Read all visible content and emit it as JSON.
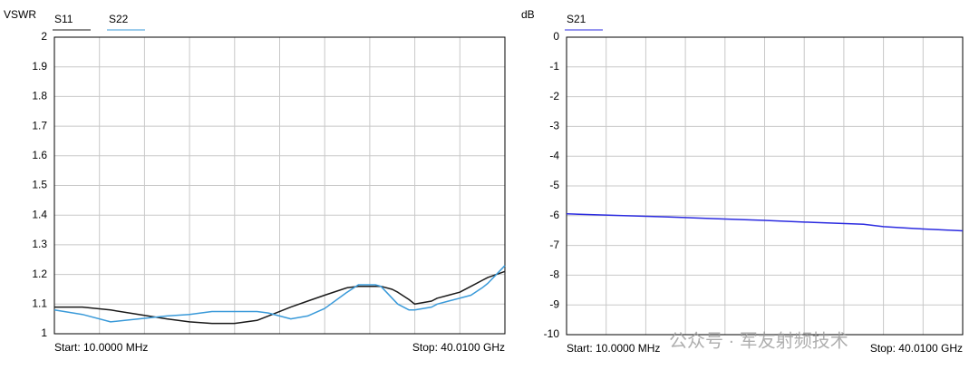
{
  "chart_data": [
    {
      "type": "line",
      "y_label": "VSWR",
      "start_label": "Start: 10.0000 MHz",
      "stop_label": "Stop: 40.0100 GHz",
      "x": [
        0.01,
        2.5,
        5,
        7.5,
        10,
        12,
        14,
        16,
        18,
        19,
        21,
        22.5,
        24,
        26,
        27,
        28.5,
        29,
        30,
        30.5,
        31.5,
        32,
        33.5,
        34,
        35,
        36,
        37,
        38,
        38.5,
        40.01
      ],
      "xlim": [
        0.01,
        40.01
      ],
      "ylim": [
        1,
        2
      ],
      "yticks": [
        1,
        1.1,
        1.2,
        1.3,
        1.4,
        1.5,
        1.6,
        1.7,
        1.8,
        1.9,
        2
      ],
      "grid": true,
      "series": [
        {
          "name": "S11",
          "color": "#1a1a1a",
          "values": [
            1.09,
            1.09,
            1.08,
            1.065,
            1.05,
            1.04,
            1.035,
            1.035,
            1.045,
            1.06,
            1.09,
            1.11,
            1.13,
            1.155,
            1.16,
            1.16,
            1.16,
            1.15,
            1.14,
            1.115,
            1.1,
            1.11,
            1.12,
            1.13,
            1.14,
            1.16,
            1.18,
            1.19,
            1.21
          ]
        },
        {
          "name": "S22",
          "color": "#3a9ad9",
          "values": [
            1.08,
            1.065,
            1.04,
            1.05,
            1.06,
            1.065,
            1.075,
            1.075,
            1.075,
            1.07,
            1.05,
            1.06,
            1.085,
            1.14,
            1.165,
            1.165,
            1.16,
            1.12,
            1.1,
            1.08,
            1.08,
            1.09,
            1.1,
            1.11,
            1.12,
            1.13,
            1.155,
            1.17,
            1.23
          ]
        }
      ]
    },
    {
      "type": "line",
      "y_label": "dB",
      "start_label": "Start: 10.0000 MHz",
      "stop_label": "Stop: 40.0100 GHz",
      "x": [
        0.01,
        5,
        10,
        15,
        20,
        25,
        30,
        32,
        35,
        40.01
      ],
      "xlim": [
        0.01,
        40.01
      ],
      "ylim": [
        -10,
        0
      ],
      "yticks": [
        -10,
        -9,
        -8,
        -7,
        -6,
        -5,
        -4,
        -3,
        -2,
        -1,
        0
      ],
      "grid": true,
      "series": [
        {
          "name": "S21",
          "color": "#2b2be0",
          "values": [
            -5.94,
            -5.99,
            -6.04,
            -6.1,
            -6.16,
            -6.23,
            -6.29,
            -6.37,
            -6.43,
            -6.51
          ]
        }
      ]
    }
  ],
  "watermark": "公众号 · 军友射频技术"
}
